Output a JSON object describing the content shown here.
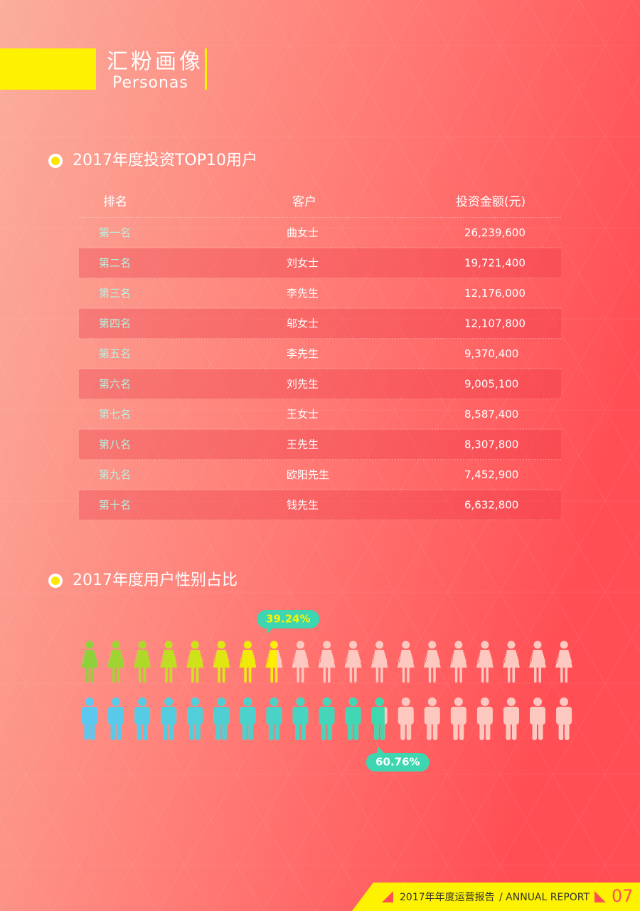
{
  "header": {
    "title": "汇粉画像",
    "subtitle": "Personas"
  },
  "ranking": {
    "heading": "2017年度投资TOP10用户",
    "columns": [
      "排名",
      "客户",
      "投资金额(元)"
    ],
    "rows": [
      [
        "第一名",
        "曲女士",
        "26,239,600"
      ],
      [
        "第二名",
        "刘女士",
        "19,721,400"
      ],
      [
        "第三名",
        "李先生",
        "12,176,000"
      ],
      [
        "第四名",
        "邬女士",
        "12,107,800"
      ],
      [
        "第五名",
        "李先生",
        "9,370,400"
      ],
      [
        "第六名",
        "刘先生",
        "9,005,100"
      ],
      [
        "第七名",
        "王女士",
        "8,587,400"
      ],
      [
        "第八名",
        "王先生",
        "8,307,800"
      ],
      [
        "第九名",
        "欧阳先生",
        "7,452,900"
      ],
      [
        "第十名",
        "钱先生",
        "6,632,800"
      ]
    ]
  },
  "gender": {
    "heading": "2017年度用户性别占比",
    "female": {
      "value": 39.24,
      "label": "39.24%"
    },
    "male": {
      "value": 60.76,
      "label": "60.76%"
    }
  },
  "footer": {
    "report_title": "2017年年度运营报告",
    "report_subtitle": "/ ANNUAL REPORT",
    "page_number": "07"
  }
}
